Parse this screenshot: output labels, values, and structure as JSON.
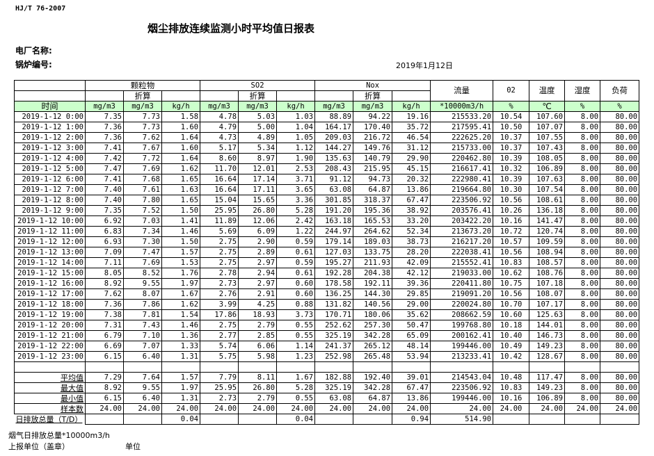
{
  "standard": "HJ/T  76-2007",
  "title": "烟尘排放连续监测小时平均值日报表",
  "plant_name_label": "电厂名称:",
  "boiler_no_label": "锅炉编号:",
  "report_date": "2019年1月12日",
  "header": {
    "groups": [
      "颗粒物",
      "SO2",
      "Nox"
    ],
    "converted_label": "折算",
    "flow": "流量",
    "o2": "02",
    "temperature": "温度",
    "humidity": "湿度",
    "load": "负荷",
    "units": [
      "时间",
      "mg/m3",
      "mg/m3",
      "kg/h",
      "mg/m3",
      "mg/m3",
      "kg/h",
      "mg/m3",
      "mg/m3",
      "kg/h",
      "*10000m3/h",
      "%",
      "℃",
      "%",
      "%"
    ]
  },
  "rows": [
    [
      "2019-1-12 0:00",
      "7.35",
      "7.73",
      "1.58",
      "4.78",
      "5.03",
      "1.03",
      "88.89",
      "94.22",
      "19.16",
      "215533.20",
      "10.54",
      "107.60",
      "8.00",
      "80.00"
    ],
    [
      "2019-1-12 1:00",
      "7.36",
      "7.73",
      "1.60",
      "4.79",
      "5.00",
      "1.04",
      "164.17",
      "170.40",
      "35.72",
      "217595.41",
      "10.50",
      "107.07",
      "8.00",
      "80.00"
    ],
    [
      "2019-1-12 2:00",
      "7.36",
      "7.62",
      "1.64",
      "4.73",
      "4.89",
      "1.05",
      "209.03",
      "216.72",
      "46.54",
      "222625.20",
      "10.37",
      "107.55",
      "8.00",
      "80.00"
    ],
    [
      "2019-1-12 3:00",
      "7.41",
      "7.67",
      "1.60",
      "5.17",
      "5.34",
      "1.12",
      "144.27",
      "149.76",
      "31.12",
      "215733.00",
      "10.37",
      "107.43",
      "8.00",
      "80.00"
    ],
    [
      "2019-1-12 4:00",
      "7.42",
      "7.72",
      "1.64",
      "8.60",
      "8.97",
      "1.90",
      "135.63",
      "140.79",
      "29.90",
      "220462.80",
      "10.39",
      "108.05",
      "8.00",
      "80.00"
    ],
    [
      "2019-1-12 5:00",
      "7.47",
      "7.69",
      "1.62",
      "11.70",
      "12.01",
      "2.53",
      "208.43",
      "215.95",
      "45.15",
      "216617.41",
      "10.32",
      "106.89",
      "8.00",
      "80.00"
    ],
    [
      "2019-1-12 6:00",
      "7.41",
      "7.68",
      "1.65",
      "16.64",
      "17.14",
      "3.71",
      "91.12",
      "94.73",
      "20.32",
      "222980.41",
      "10.39",
      "107.63",
      "8.00",
      "80.00"
    ],
    [
      "2019-1-12 7:00",
      "7.40",
      "7.61",
      "1.63",
      "16.64",
      "17.11",
      "3.65",
      "63.08",
      "64.87",
      "13.86",
      "219664.80",
      "10.30",
      "107.54",
      "8.00",
      "80.00"
    ],
    [
      "2019-1-12 8:00",
      "7.40",
      "7.80",
      "1.65",
      "15.04",
      "15.65",
      "3.36",
      "301.85",
      "318.37",
      "67.47",
      "223506.92",
      "10.56",
      "108.61",
      "8.00",
      "80.00"
    ],
    [
      "2019-1-12 9:00",
      "7.35",
      "7.52",
      "1.50",
      "25.95",
      "26.80",
      "5.28",
      "191.20",
      "195.36",
      "38.92",
      "203576.41",
      "10.26",
      "136.18",
      "8.00",
      "80.00"
    ],
    [
      "2019-1-12 10:00",
      "6.92",
      "7.03",
      "1.41",
      "11.89",
      "12.06",
      "2.42",
      "163.18",
      "165.53",
      "33.20",
      "203422.20",
      "10.16",
      "141.47",
      "8.00",
      "80.00"
    ],
    [
      "2019-1-12 11:00",
      "6.83",
      "7.34",
      "1.46",
      "5.69",
      "6.09",
      "1.22",
      "244.97",
      "264.62",
      "52.34",
      "213673.20",
      "10.72",
      "120.74",
      "8.00",
      "80.00"
    ],
    [
      "2019-1-12 12:00",
      "6.93",
      "7.30",
      "1.50",
      "2.75",
      "2.90",
      "0.59",
      "179.14",
      "189.03",
      "38.73",
      "216217.20",
      "10.57",
      "109.59",
      "8.00",
      "80.00"
    ],
    [
      "2019-1-12 13:00",
      "7.09",
      "7.47",
      "1.57",
      "2.75",
      "2.89",
      "0.61",
      "127.03",
      "133.75",
      "28.20",
      "222038.41",
      "10.56",
      "108.94",
      "8.00",
      "80.00"
    ],
    [
      "2019-1-12 14:00",
      "7.11",
      "7.69",
      "1.53",
      "2.75",
      "2.97",
      "0.59",
      "195.27",
      "211.93",
      "42.09",
      "215552.41",
      "10.83",
      "108.57",
      "8.00",
      "80.00"
    ],
    [
      "2019-1-12 15:00",
      "8.05",
      "8.52",
      "1.76",
      "2.78",
      "2.94",
      "0.61",
      "192.28",
      "204.38",
      "42.12",
      "219033.00",
      "10.62",
      "108.76",
      "8.00",
      "80.00"
    ],
    [
      "2019-1-12 16:00",
      "8.92",
      "9.55",
      "1.97",
      "2.73",
      "2.97",
      "0.60",
      "178.58",
      "192.11",
      "39.36",
      "220411.80",
      "10.75",
      "107.18",
      "8.00",
      "80.00"
    ],
    [
      "2019-1-12 17:00",
      "7.62",
      "8.07",
      "1.67",
      "2.76",
      "2.91",
      "0.60",
      "136.25",
      "144.30",
      "29.85",
      "219091.20",
      "10.56",
      "108.07",
      "8.00",
      "80.00"
    ],
    [
      "2019-1-12 18:00",
      "7.36",
      "7.86",
      "1.62",
      "3.99",
      "4.25",
      "0.88",
      "131.82",
      "140.56",
      "29.00",
      "220024.80",
      "10.70",
      "107.17",
      "8.00",
      "80.00"
    ],
    [
      "2019-1-12 19:00",
      "7.38",
      "7.81",
      "1.54",
      "17.86",
      "18.93",
      "3.73",
      "170.71",
      "180.06",
      "35.62",
      "208662.59",
      "10.60",
      "125.63",
      "8.00",
      "80.00"
    ],
    [
      "2019-1-12 20:00",
      "7.31",
      "7.43",
      "1.46",
      "2.75",
      "2.79",
      "0.55",
      "252.62",
      "257.30",
      "50.47",
      "199768.80",
      "10.18",
      "144.01",
      "8.00",
      "80.00"
    ],
    [
      "2019-1-12 21:00",
      "6.79",
      "7.10",
      "1.36",
      "2.77",
      "2.85",
      "0.55",
      "325.19",
      "342.28",
      "65.09",
      "200162.41",
      "10.40",
      "146.73",
      "8.00",
      "80.00"
    ],
    [
      "2019-1-12 22:00",
      "6.69",
      "7.07",
      "1.33",
      "5.74",
      "6.06",
      "1.14",
      "241.37",
      "265.12",
      "48.14",
      "199446.00",
      "10.49",
      "149.23",
      "8.00",
      "80.00"
    ],
    [
      "2019-1-12 23:00",
      "6.15",
      "6.40",
      "1.31",
      "5.75",
      "5.98",
      "1.23",
      "252.98",
      "265.48",
      "53.94",
      "213233.41",
      "10.42",
      "128.67",
      "8.00",
      "80.00"
    ]
  ],
  "summary": [
    [
      "平均值",
      "7.29",
      "7.64",
      "1.57",
      "7.79",
      "8.11",
      "1.67",
      "182.88",
      "192.40",
      "39.01",
      "214543.04",
      "10.48",
      "117.47",
      "8.00",
      "80.00"
    ],
    [
      "最大值",
      "8.92",
      "9.55",
      "1.97",
      "25.95",
      "26.80",
      "5.28",
      "325.19",
      "342.28",
      "67.47",
      "223506.92",
      "10.83",
      "149.23",
      "8.00",
      "80.00"
    ],
    [
      "最小值",
      "6.15",
      "6.40",
      "1.31",
      "2.73",
      "2.79",
      "0.55",
      "63.08",
      "64.87",
      "13.86",
      "199446.00",
      "10.16",
      "106.89",
      "8.00",
      "80.00"
    ],
    [
      "样本数",
      "24.00",
      "24.00",
      "24.00",
      "24.00",
      "24.00",
      "24.00",
      "24.00",
      "24.00",
      "24.00",
      "24.00",
      "24.00",
      "24.00",
      "24.00",
      "24.00"
    ]
  ],
  "daily_total": [
    "日排放总量（T/D）",
    "",
    "",
    "0.04",
    "",
    "",
    "0.04",
    "",
    "",
    "0.94",
    "514.90",
    "",
    "",
    "",
    ""
  ],
  "footer": {
    "flue_gas_total": "烟气日排放总量*10000m3/h",
    "reporting_unit": "上报单位（盖章）",
    "unit": "单位"
  },
  "colors": {
    "unit_row_bg": "#ccffcc"
  }
}
